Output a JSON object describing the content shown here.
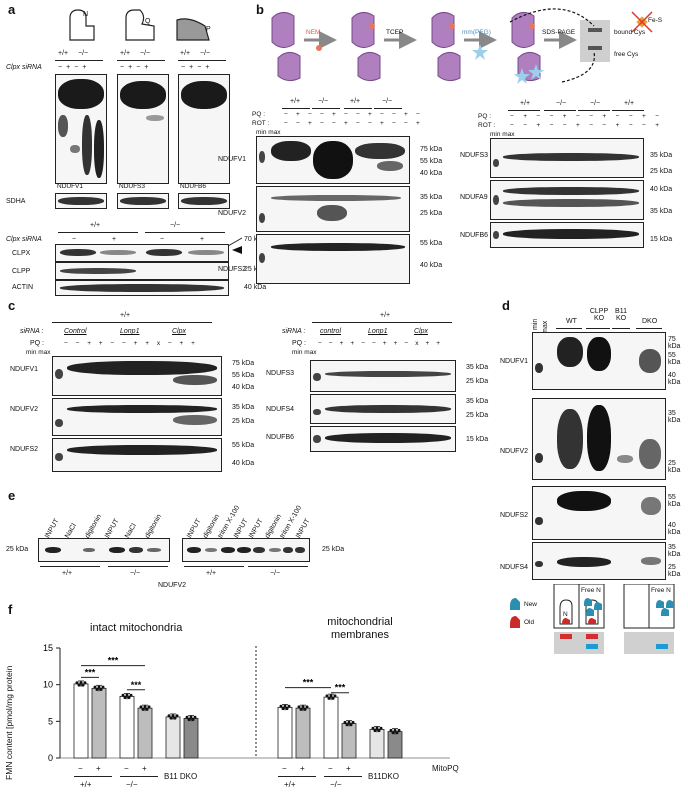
{
  "panels": {
    "a": "a",
    "b": "b",
    "c": "c",
    "d": "d",
    "e": "e",
    "f": "f"
  },
  "a": {
    "genotype_wt": "+/+",
    "genotype_ko": "−/−",
    "sirna_label": "Clpx siRNA",
    "minus": "−",
    "plus": "+",
    "icon_letters": [
      "N",
      "Q",
      "P"
    ],
    "loading": "SDHA",
    "blot_labels": [
      "NDUFV1",
      "NDUFS3",
      "NDUFB6"
    ],
    "lower_rows": [
      "CLPX",
      "CLPP",
      "ACTIN"
    ],
    "kda": [
      "70 kDa",
      "25 kDa",
      "40 kDa"
    ]
  },
  "b": {
    "steps": [
      "NEM",
      "TCEP",
      "mm(PEG)",
      "SDS-PAGE"
    ],
    "legend": [
      "bound Cys",
      "free Cys"
    ],
    "fes": "Fe-S",
    "pq": "PQ :",
    "rot": "ROT :",
    "minmax": "min max",
    "genotypes_left": [
      "+/+",
      "−/−",
      "+/+",
      "−/−"
    ],
    "genotypes_right": [
      "+/+",
      "−/−",
      "−/−",
      "+/+"
    ],
    "left_blots": [
      "NDUFV1",
      "NDUFV2",
      "NDUFS2"
    ],
    "right_blots": [
      "NDUFS3",
      "NDUFA9",
      "NDUFB6"
    ],
    "left_kda": [
      [
        "75 kDa",
        "55 kDa",
        "40 kDa"
      ],
      [
        "35 kDa",
        "25 kDa"
      ],
      [
        "55 kDa",
        "40 kDa"
      ]
    ],
    "right_kda": [
      [
        "35 kDa",
        "25 kDa"
      ],
      [
        "40 kDa",
        "35 kDa"
      ],
      [
        "15 kDa"
      ]
    ]
  },
  "c": {
    "genotype": "+/+",
    "sirna": "siRNA :",
    "pq": "PQ :",
    "minmax": "min max",
    "groups_left": [
      "Control",
      "Lonp1",
      "Clpx"
    ],
    "groups_right": [
      "control",
      "Lonp1",
      "Clpx"
    ],
    "left_blots": [
      "NDUFV1",
      "NDUFV2",
      "NDUFS2"
    ],
    "right_blots": [
      "NDUFS3",
      "NDUFS4",
      "NDUFB6"
    ],
    "left_kda": [
      [
        "75 kDa",
        "55 kDa",
        "40 kDa"
      ],
      [
        "35 kDa",
        "25 kDa"
      ],
      [
        "55 kDa",
        "40 kDa"
      ]
    ],
    "right_kda": [
      [
        "35 kDa",
        "25 kDa"
      ],
      [
        "35 kDa",
        "25 kDa"
      ],
      [
        "15 kDa"
      ]
    ]
  },
  "d": {
    "min": "min",
    "max": "max",
    "groups": [
      "WT",
      "CLPP KO",
      "B11 KO",
      "DKO"
    ],
    "blots": [
      "NDUFV1",
      "NDUFV2",
      "NDUFS2",
      "NDUFS4"
    ],
    "kda": [
      [
        "75 kDa",
        "55 kDa",
        "40 kDa"
      ],
      [
        "35 kDa",
        "25 kDa"
      ],
      [
        "55 kDa",
        "40 kDa"
      ],
      [
        "35 kDa",
        "25 kDa"
      ]
    ],
    "legend": [
      "New",
      "Old"
    ],
    "free_n": "Free N",
    "n": "N",
    "colors": {
      "new": "#2a8fb0",
      "old": "#cc2a2a",
      "red_bar": "#d32f2f",
      "blue_bar": "#1e9ad6"
    }
  },
  "e": {
    "left_lanes": [
      "INPUT",
      "NaCl",
      "digitonin",
      "INPUT",
      "NaCl",
      "digitonin"
    ],
    "right_lanes": [
      "INPUT",
      "digitonin",
      "triton X-100",
      "INPUT",
      "INPUT",
      "digitonin",
      "triton X-100",
      "INPUT"
    ],
    "kda": "25 kDa",
    "genotypes": [
      "+/+",
      "−/−",
      "+/+",
      "−/−"
    ],
    "protein": "NDUFV2"
  },
  "f": {
    "ylabel": "FMN content [pmol/mg protein",
    "title_left": "intact mitochondria",
    "title_right_1": "mitochondrial",
    "title_right_2": "membranes",
    "yticks": [
      "0",
      "5",
      "10",
      "15"
    ],
    "sig": "***",
    "minus": "−",
    "plus": "+",
    "mitopq": "MitoPQ",
    "groups_left": [
      "+/+",
      "−/−",
      "B11 DKO"
    ],
    "groups_right": [
      "+/+",
      "−/−",
      "B11DKO"
    ]
  },
  "chart_data": {
    "type": "bar",
    "title": "",
    "ylabel": "FMN content [pmol/mg protein",
    "ylim": [
      0,
      15
    ],
    "yticks": [
      0,
      5,
      10,
      15
    ],
    "sections": [
      "intact mitochondria",
      "mitochondrial membranes"
    ],
    "categories": [
      "+/+ −",
      "+/+ +",
      "−/− −",
      "−/− +",
      "B11 DKO −",
      "B11 DKO +",
      "+/+ −",
      "+/+ +",
      "−/− −",
      "−/− +",
      "B11DKO −",
      "B11DKO +"
    ],
    "values": [
      10.1,
      9.5,
      8.4,
      6.8,
      5.6,
      5.4,
      6.9,
      6.8,
      8.3,
      4.7,
      3.9,
      3.6
    ],
    "colors": [
      "#ffffff",
      "#bdbdbd",
      "#ffffff",
      "#bdbdbd",
      "#e6e6e6",
      "#8a8a8a",
      "#ffffff",
      "#bdbdbd",
      "#ffffff",
      "#bdbdbd",
      "#e6e6e6",
      "#8a8a8a"
    ],
    "significance": "***",
    "grid": false
  }
}
